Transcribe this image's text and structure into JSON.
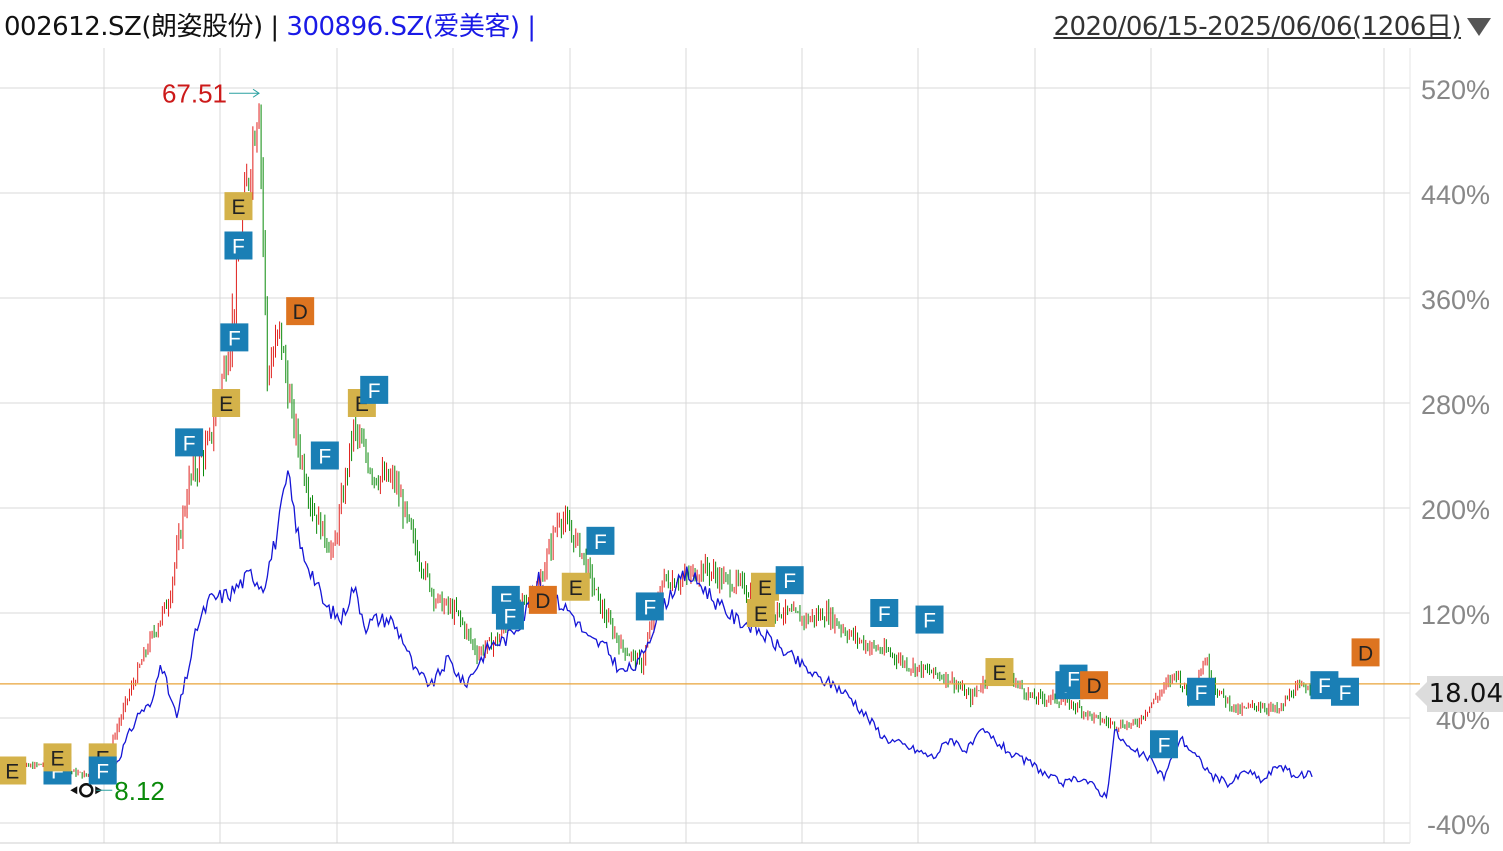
{
  "header": {
    "stock1": "002612.SZ(朗姿股份)",
    "separator1": " | ",
    "stock2": "300896.SZ(爱美客)",
    "separator2": " |",
    "range_label": "2020/06/15-2025/06/06(1206日)"
  },
  "colors": {
    "up": "#e0201c",
    "down": "#0a8a0a",
    "compare_line": "#1515d6",
    "price_line": "#e8a43a",
    "grid": "#d8d8d8",
    "axis_text": "#888888",
    "marker_E": "#d4b24a",
    "marker_F": "#1a7fb5",
    "marker_D": "#dd7420"
  },
  "price_tag": "18.04",
  "chart_data": {
    "type": "line",
    "x_range": [
      "2020/06/15",
      "2025/06/06"
    ],
    "trading_days": 1206,
    "y_unit": "%",
    "ylim": [
      -45,
      545
    ],
    "yticks": [
      520,
      440,
      360,
      280,
      200,
      120,
      40,
      -40
    ],
    "ytick_labels": [
      "520%",
      "440%",
      "360%",
      "280%",
      "200%",
      "120%",
      "40%",
      "-40%"
    ],
    "grid": true,
    "max_annotation": {
      "label": "67.51",
      "day": 62,
      "pct": 516
    },
    "min_annotation": {
      "label": "8.12",
      "day": 20,
      "pct": -15
    },
    "current_price_pct": 66,
    "series": [
      {
        "name": "002612.SZ(朗姿股份)",
        "render": "candles",
        "points": [
          [
            0,
            0
          ],
          [
            10,
            5
          ],
          [
            20,
            -4
          ],
          [
            25,
            10
          ],
          [
            30,
            55
          ],
          [
            35,
            95
          ],
          [
            40,
            130
          ],
          [
            45,
            220
          ],
          [
            50,
            250
          ],
          [
            55,
            330
          ],
          [
            58,
            420
          ],
          [
            62,
            515
          ],
          [
            64,
            300
          ],
          [
            67,
            335
          ],
          [
            70,
            270
          ],
          [
            75,
            200
          ],
          [
            80,
            165
          ],
          [
            85,
            260
          ],
          [
            90,
            225
          ],
          [
            95,
            220
          ],
          [
            100,
            170
          ],
          [
            105,
            130
          ],
          [
            110,
            120
          ],
          [
            115,
            90
          ],
          [
            120,
            100
          ],
          [
            125,
            125
          ],
          [
            130,
            140
          ],
          [
            135,
            195
          ],
          [
            140,
            170
          ],
          [
            145,
            125
          ],
          [
            150,
            95
          ],
          [
            155,
            80
          ],
          [
            160,
            145
          ],
          [
            165,
            145
          ],
          [
            170,
            155
          ],
          [
            175,
            145
          ],
          [
            180,
            140
          ],
          [
            185,
            125
          ],
          [
            190,
            120
          ],
          [
            195,
            115
          ],
          [
            200,
            120
          ],
          [
            205,
            105
          ],
          [
            210,
            95
          ],
          [
            215,
            90
          ],
          [
            220,
            80
          ],
          [
            225,
            75
          ],
          [
            230,
            70
          ],
          [
            235,
            55
          ],
          [
            240,
            75
          ],
          [
            245,
            70
          ],
          [
            250,
            55
          ],
          [
            255,
            55
          ],
          [
            260,
            50
          ],
          [
            265,
            40
          ],
          [
            270,
            35
          ],
          [
            275,
            35
          ],
          [
            280,
            55
          ],
          [
            285,
            75
          ],
          [
            288,
            55
          ],
          [
            292,
            85
          ],
          [
            295,
            60
          ],
          [
            300,
            45
          ],
          [
            305,
            50
          ],
          [
            310,
            45
          ],
          [
            313,
            60
          ],
          [
            318,
            66
          ]
        ]
      },
      {
        "name": "300896.SZ(爱美客)",
        "render": "line",
        "points": [
          [
            26,
            0
          ],
          [
            28,
            10
          ],
          [
            30,
            25
          ],
          [
            33,
            45
          ],
          [
            36,
            50
          ],
          [
            38,
            85
          ],
          [
            40,
            60
          ],
          [
            42,
            40
          ],
          [
            45,
            80
          ],
          [
            47,
            110
          ],
          [
            50,
            130
          ],
          [
            55,
            135
          ],
          [
            60,
            150
          ],
          [
            63,
            140
          ],
          [
            66,
            175
          ],
          [
            69,
            225
          ],
          [
            72,
            170
          ],
          [
            75,
            150
          ],
          [
            78,
            125
          ],
          [
            82,
            115
          ],
          [
            85,
            140
          ],
          [
            88,
            110
          ],
          [
            90,
            115
          ],
          [
            94,
            115
          ],
          [
            97,
            100
          ],
          [
            100,
            75
          ],
          [
            104,
            65
          ],
          [
            108,
            85
          ],
          [
            112,
            65
          ],
          [
            115,
            80
          ],
          [
            118,
            95
          ],
          [
            122,
            100
          ],
          [
            126,
            115
          ],
          [
            130,
            145
          ],
          [
            134,
            130
          ],
          [
            138,
            120
          ],
          [
            142,
            100
          ],
          [
            146,
            95
          ],
          [
            150,
            75
          ],
          [
            154,
            80
          ],
          [
            158,
            110
          ],
          [
            162,
            135
          ],
          [
            166,
            150
          ],
          [
            170,
            140
          ],
          [
            174,
            125
          ],
          [
            178,
            115
          ],
          [
            182,
            110
          ],
          [
            186,
            100
          ],
          [
            190,
            90
          ],
          [
            194,
            80
          ],
          [
            198,
            70
          ],
          [
            202,
            65
          ],
          [
            206,
            55
          ],
          [
            210,
            40
          ],
          [
            214,
            25
          ],
          [
            218,
            20
          ],
          [
            222,
            15
          ],
          [
            226,
            10
          ],
          [
            230,
            25
          ],
          [
            234,
            15
          ],
          [
            238,
            30
          ],
          [
            242,
            20
          ],
          [
            246,
            10
          ],
          [
            250,
            5
          ],
          [
            254,
            -5
          ],
          [
            258,
            -10
          ],
          [
            262,
            -5
          ],
          [
            266,
            -15
          ],
          [
            268,
            -20
          ],
          [
            270,
            30
          ],
          [
            274,
            15
          ],
          [
            278,
            10
          ],
          [
            282,
            -5
          ],
          [
            286,
            25
          ],
          [
            290,
            10
          ],
          [
            294,
            -5
          ],
          [
            298,
            -10
          ],
          [
            302,
            0
          ],
          [
            306,
            -8
          ],
          [
            310,
            5
          ],
          [
            314,
            -5
          ],
          [
            318,
            -2
          ]
        ]
      }
    ],
    "markers": [
      {
        "label": "E",
        "day": 2,
        "pct": 0
      },
      {
        "label": "F",
        "day": 13,
        "pct": 0
      },
      {
        "label": "E",
        "day": 13,
        "pct": 10
      },
      {
        "label": "E",
        "day": 24,
        "pct": 10
      },
      {
        "label": "F",
        "day": 24,
        "pct": 0
      },
      {
        "label": "F",
        "day": 45,
        "pct": 250
      },
      {
        "label": "E",
        "day": 54,
        "pct": 280
      },
      {
        "label": "F",
        "day": 56,
        "pct": 330
      },
      {
        "label": "F",
        "day": 57,
        "pct": 400
      },
      {
        "label": "E",
        "day": 57,
        "pct": 430
      },
      {
        "label": "D",
        "day": 72,
        "pct": 350
      },
      {
        "label": "F",
        "day": 78,
        "pct": 240
      },
      {
        "label": "E",
        "day": 87,
        "pct": 280
      },
      {
        "label": "F",
        "day": 90,
        "pct": 290
      },
      {
        "label": "F",
        "day": 122,
        "pct": 130
      },
      {
        "label": "F",
        "day": 123,
        "pct": 118
      },
      {
        "label": "D",
        "day": 131,
        "pct": 130
      },
      {
        "label": "E",
        "day": 139,
        "pct": 140
      },
      {
        "label": "F",
        "day": 145,
        "pct": 175
      },
      {
        "label": "F",
        "day": 157,
        "pct": 125
      },
      {
        "label": "E",
        "day": 185,
        "pct": 140
      },
      {
        "label": "F",
        "day": 191,
        "pct": 145
      },
      {
        "label": "E",
        "day": 184,
        "pct": 120
      },
      {
        "label": "F",
        "day": 214,
        "pct": 120
      },
      {
        "label": "F",
        "day": 225,
        "pct": 115
      },
      {
        "label": "E",
        "day": 242,
        "pct": 75
      },
      {
        "label": "F",
        "day": 259,
        "pct": 65
      },
      {
        "label": "F",
        "day": 260,
        "pct": 70
      },
      {
        "label": "D",
        "day": 265,
        "pct": 65
      },
      {
        "label": "F",
        "day": 282,
        "pct": 20
      },
      {
        "label": "F",
        "day": 291,
        "pct": 60
      },
      {
        "label": "F",
        "day": 321,
        "pct": 65
      },
      {
        "label": "F",
        "day": 326,
        "pct": 60
      },
      {
        "label": "D",
        "day": 331,
        "pct": 90
      }
    ]
  }
}
